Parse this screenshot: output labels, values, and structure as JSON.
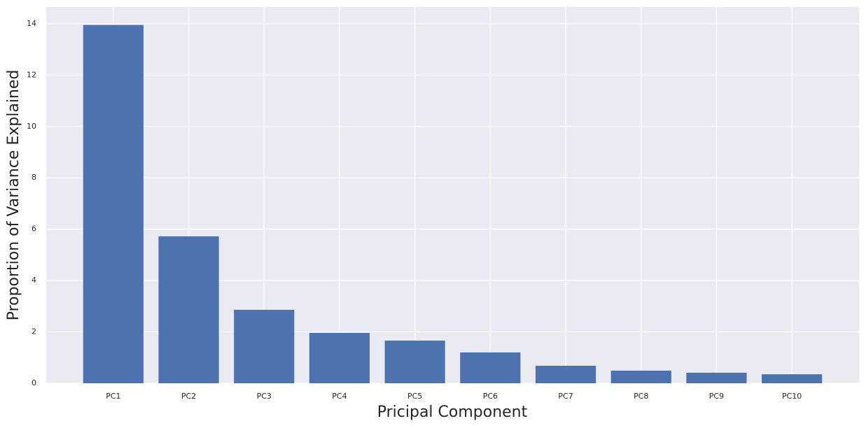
{
  "chart_data": {
    "type": "bar",
    "x_label": "Pricipal Component",
    "y_label": "Proportion of Variance Explained",
    "categories": [
      "PC1",
      "PC2",
      "PC3",
      "PC4",
      "PC5",
      "PC6",
      "PC7",
      "PC8",
      "PC9",
      "PC10"
    ],
    "values": [
      13.95,
      5.72,
      2.86,
      1.96,
      1.66,
      1.2,
      0.68,
      0.49,
      0.41,
      0.35
    ],
    "color": "#4c72b0",
    "ylim": [
      0,
      14.65
    ],
    "yticks": [
      0,
      2,
      4,
      6,
      8,
      10,
      12,
      14
    ],
    "grid": true
  }
}
